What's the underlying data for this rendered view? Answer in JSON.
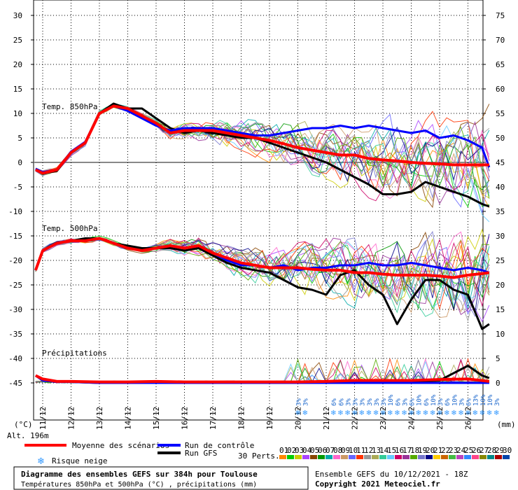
{
  "chart_data": {
    "type": "line",
    "title": "Diagramme des ensembles GEFS sur 384h pour Toulouse",
    "subtitle": "Températures 850hPa et 500hPa (°C) , précipitations (mm)",
    "run_info": "Ensemble GEFS du 10/12/2021 - 18Z",
    "copyright": "Copyright 2021 Meteociel.fr",
    "y_left": {
      "ticks": [
        "30",
        "25",
        "20",
        "15",
        "10",
        "5",
        "0",
        "-5",
        "-10",
        "-15",
        "-20",
        "-25",
        "-30",
        "-35",
        "-40",
        "-45"
      ],
      "values": [
        30,
        25,
        20,
        15,
        10,
        5,
        0,
        -5,
        -10,
        -15,
        -20,
        -25,
        -30,
        -35,
        -40,
        -45
      ],
      "unit_label": "(°C)"
    },
    "y_right": {
      "ticks": [
        "75",
        "70",
        "65",
        "60",
        "55",
        "50",
        "45",
        "40",
        "35",
        "30",
        "25",
        "20",
        "15",
        "10",
        "5",
        "0"
      ],
      "unit_label": "(mm)"
    },
    "x_labels": [
      "11/12",
      "12/12",
      "13/12",
      "14/12",
      "15/12",
      "16/12",
      "17/12",
      "18/12",
      "19/12",
      "20/12",
      "21/12",
      "22/12",
      "23/12",
      "24/12",
      "25/12",
      "26/12"
    ],
    "altitude": "Alt. 196m",
    "panel_labels": {
      "t850": "Temp. 850hPa",
      "t500": "Temp. 500hPa",
      "precip": "Précipitations"
    },
    "legend": {
      "mean": "Moyenne des scénarios",
      "control": "Run de contrôle",
      "gfs": "Run GFS",
      "snow": "Risque neige",
      "perts": "30 Perts.",
      "members": [
        "01",
        "02",
        "03",
        "04",
        "05",
        "06",
        "07",
        "08",
        "09",
        "10",
        "11",
        "12",
        "13",
        "14",
        "15",
        "16",
        "17",
        "18",
        "19",
        "20",
        "21",
        "22",
        "23",
        "24",
        "25",
        "26",
        "27",
        "28",
        "29",
        "30"
      ]
    },
    "snow_risk_pct": [
      {
        "x": 20.0,
        "label": "3%"
      },
      {
        "x": 20.25,
        "label": "3%"
      },
      {
        "x": 21.25,
        "label": "6%"
      },
      {
        "x": 21.5,
        "label": "6%"
      },
      {
        "x": 21.75,
        "label": "3%"
      },
      {
        "x": 22.0,
        "label": "3%"
      },
      {
        "x": 22.25,
        "label": "3%"
      },
      {
        "x": 22.5,
        "label": "3%"
      },
      {
        "x": 22.75,
        "label": "3%"
      },
      {
        "x": 23.0,
        "label": "3%"
      },
      {
        "x": 23.25,
        "label": "10%"
      },
      {
        "x": 23.5,
        "label": "6%"
      },
      {
        "x": 23.75,
        "label": "3%"
      },
      {
        "x": 24.0,
        "label": "6%"
      },
      {
        "x": 24.25,
        "label": "10%"
      },
      {
        "x": 24.5,
        "label": "6%"
      },
      {
        "x": 24.75,
        "label": "10%"
      },
      {
        "x": 25.0,
        "label": "3%"
      },
      {
        "x": 25.25,
        "label": "6%"
      },
      {
        "x": 25.5,
        "label": "10%"
      },
      {
        "x": 25.75,
        "label": "3%"
      },
      {
        "x": 26.0,
        "label": "6%"
      },
      {
        "x": 26.25,
        "label": "13%"
      },
      {
        "x": 26.5,
        "label": "10%"
      },
      {
        "x": 26.75,
        "label": "10%"
      },
      {
        "x": 27.0,
        "label": "3%"
      }
    ],
    "series": [
      {
        "name": "Moyenne des scénarios",
        "group": "t850",
        "color": "#ff0000",
        "x": [
          10.75,
          11,
          11.5,
          12,
          12.5,
          13,
          13.5,
          14,
          14.5,
          15,
          15.5,
          16,
          16.5,
          17,
          17.5,
          18,
          18.5,
          19,
          19.5,
          20,
          20.5,
          21,
          21.5,
          22,
          22.5,
          23,
          23.5,
          24,
          24.5,
          25,
          25.5,
          26,
          26.5,
          26.75
        ],
        "y": [
          -1.5,
          -2.2,
          -1.5,
          2,
          4,
          10,
          11.5,
          11,
          9.5,
          8,
          6,
          6.5,
          6.5,
          6.5,
          6,
          5.5,
          5,
          4.5,
          3.8,
          3,
          2.5,
          2,
          1.5,
          1.5,
          0.8,
          0.5,
          0.3,
          0,
          -0.2,
          -0.3,
          -0.5,
          -0.5,
          -0.5,
          -0.5
        ]
      },
      {
        "name": "Run de contrôle",
        "group": "t850",
        "color": "#0000ff",
        "x": [
          10.75,
          11,
          11.5,
          12,
          12.5,
          13,
          13.5,
          14,
          14.5,
          15,
          15.5,
          16,
          16.5,
          17,
          17.5,
          18,
          18.5,
          19,
          19.5,
          20,
          20.5,
          21,
          21.5,
          22,
          22.5,
          23,
          23.5,
          24,
          24.5,
          25,
          25.5,
          26,
          26.5,
          26.75
        ],
        "y": [
          -1.3,
          -2,
          -1.5,
          2.2,
          4.2,
          10,
          11.5,
          10.5,
          9,
          7.5,
          6.5,
          7,
          7,
          7,
          6.5,
          6,
          5.5,
          5.5,
          6,
          6.5,
          7,
          7,
          7.5,
          7,
          7.5,
          7,
          6.5,
          6,
          6.5,
          5,
          5.5,
          4.5,
          3,
          -1
        ]
      },
      {
        "name": "Run GFS",
        "group": "t850",
        "color": "#000000",
        "x": [
          10.75,
          11,
          11.5,
          12,
          12.5,
          13,
          13.5,
          14,
          14.5,
          15,
          15.5,
          16,
          16.5,
          17,
          17.5,
          18,
          18.5,
          19,
          19.5,
          20,
          20.5,
          21,
          21.5,
          22,
          22.5,
          23,
          23.5,
          24,
          24.5,
          25,
          25.5,
          26,
          26.5,
          26.75
        ],
        "y": [
          -1.5,
          -2.3,
          -1.7,
          2,
          4,
          10,
          12,
          11,
          11,
          9,
          7,
          6,
          6.5,
          6,
          5.5,
          5,
          5,
          4,
          3,
          2,
          1,
          0,
          -1.5,
          -3,
          -4.5,
          -6.5,
          -6.5,
          -6,
          -4,
          -5,
          -6,
          -7,
          -8.5,
          -9
        ]
      },
      {
        "name": "Moyenne des scénarios",
        "group": "t500",
        "color": "#ff0000",
        "x": [
          10.75,
          11,
          11.5,
          12,
          12.5,
          13,
          13.5,
          14,
          14.5,
          15,
          15.5,
          16,
          16.5,
          17,
          17.5,
          18,
          18.5,
          19,
          19.5,
          20,
          20.5,
          21,
          21.5,
          22,
          22.5,
          23,
          23.5,
          24,
          24.5,
          25,
          25.5,
          26,
          26.5,
          26.75
        ],
        "y": [
          -22,
          -18,
          -16.5,
          -16,
          -16,
          -15.5,
          -16.5,
          -17.5,
          -18,
          -17.5,
          -17,
          -17.5,
          -17,
          -18.5,
          -19.5,
          -20.5,
          -21,
          -21.5,
          -21.5,
          -21.5,
          -21.8,
          -22,
          -22,
          -22.5,
          -22.5,
          -22.8,
          -23,
          -23,
          -23,
          -23.2,
          -23.5,
          -23,
          -22.7,
          -22.5
        ]
      },
      {
        "name": "Run de contrôle",
        "group": "t500",
        "color": "#0000ff",
        "x": [
          10.75,
          11,
          11.5,
          12,
          12.5,
          13,
          13.5,
          14,
          14.5,
          15,
          15.5,
          16,
          16.5,
          17,
          17.5,
          18,
          18.5,
          19,
          19.5,
          20,
          20.5,
          21,
          21.5,
          22,
          22.5,
          23,
          23.5,
          24,
          24.5,
          25,
          25.5,
          26,
          26.5,
          26.75
        ],
        "y": [
          -22,
          -18,
          -16.5,
          -16,
          -16,
          -15.5,
          -16.5,
          -17.5,
          -18,
          -17.5,
          -17,
          -17.5,
          -17,
          -18.5,
          -20,
          -21,
          -21,
          -21.5,
          -21,
          -22,
          -21.5,
          -21.5,
          -21,
          -21,
          -20.5,
          -21,
          -21,
          -20.5,
          -21,
          -21.5,
          -22,
          -21.5,
          -22,
          -22.5
        ]
      },
      {
        "name": "Run GFS",
        "group": "t500",
        "color": "#000000",
        "x": [
          10.75,
          11,
          11.5,
          12,
          12.5,
          13,
          13.5,
          14,
          14.5,
          15,
          15.5,
          16,
          16.5,
          17,
          17.5,
          18,
          18.5,
          19,
          19.5,
          20,
          20.5,
          21,
          21.5,
          22,
          22.5,
          23,
          23.5,
          24,
          24.5,
          25,
          25.5,
          26,
          26.5,
          26.75
        ],
        "y": [
          -22,
          -18,
          -16.5,
          -16,
          -15.5,
          -15.5,
          -16.5,
          -17,
          -17.5,
          -17.5,
          -17.5,
          -18,
          -17.5,
          -19,
          -20.5,
          -21.5,
          -22,
          -22.5,
          -24,
          -25.5,
          -26,
          -27,
          -23,
          -22,
          -25,
          -27,
          -33,
          -28,
          -24,
          -24,
          -26,
          -27,
          -34,
          -33
        ]
      },
      {
        "name": "Moyenne des scénarios",
        "group": "precip",
        "color": "#ff0000",
        "x": [
          10.75,
          11,
          11.5,
          12,
          13,
          14,
          15,
          16,
          17,
          18,
          19,
          20,
          21,
          22,
          23,
          24,
          25,
          26,
          26.75
        ],
        "y": [
          1.5,
          0.8,
          0.3,
          0.3,
          0.2,
          0.2,
          0.3,
          0.2,
          0.2,
          0.2,
          0.2,
          0.2,
          0.3,
          0.5,
          0.5,
          0.5,
          0.7,
          0.8,
          0.3
        ]
      },
      {
        "name": "Run de contrôle",
        "group": "precip",
        "color": "#0000ff",
        "x": [
          10.75,
          11,
          11.5,
          12,
          13,
          14,
          15,
          16,
          17,
          18,
          19,
          20,
          21,
          22,
          23,
          24,
          25,
          26,
          26.75
        ],
        "y": [
          1.5,
          0.5,
          0.2,
          0.2,
          0,
          0,
          0,
          0,
          0,
          0,
          0,
          0,
          0,
          0,
          0,
          0,
          0,
          0,
          0
        ]
      },
      {
        "name": "Run GFS",
        "group": "precip",
        "color": "#000000",
        "x": [
          10.75,
          11,
          11.5,
          12,
          13,
          14,
          15,
          16,
          17,
          18,
          19,
          20,
          21,
          22,
          23,
          24,
          25,
          26,
          26.5,
          26.75
        ],
        "y": [
          1.5,
          0.5,
          0.2,
          0.2,
          0,
          0,
          0,
          0,
          0,
          0,
          0,
          0,
          0,
          0,
          0,
          0.3,
          0.5,
          3.5,
          1.5,
          1
        ]
      }
    ]
  }
}
